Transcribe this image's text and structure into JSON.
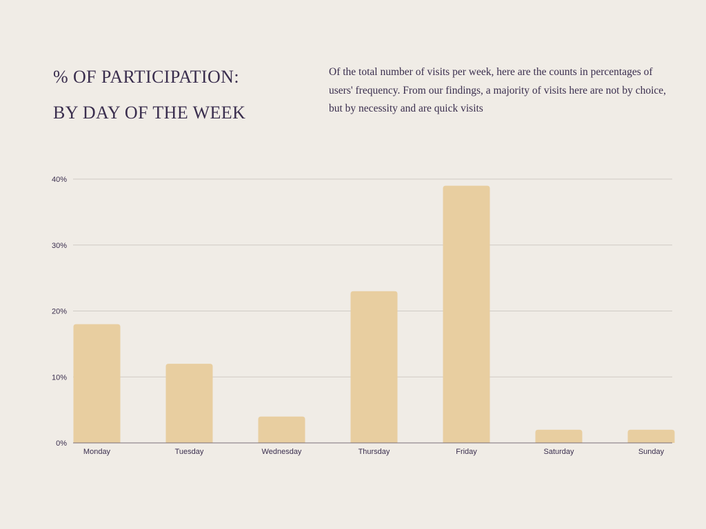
{
  "header": {
    "title_line1": "% OF PARTICIPATION:",
    "title_line2": "BY DAY OF THE WEEK",
    "description": "Of the total number of visits per week, here are the counts in percentages of users' frequency. From our findings, a majority of visits here are not by choice, but by necessity and are quick visits"
  },
  "colors": {
    "bar": "#e8cea0",
    "grid": "#cfcac4",
    "axis": "#7a6e78",
    "text": "#3a2e4e",
    "background": "#f0ece6"
  },
  "chart_data": {
    "type": "bar",
    "categories": [
      "Monday",
      "Tuesday",
      "Wednesday",
      "Thursday",
      "Friday",
      "Saturday",
      "Sunday"
    ],
    "values": [
      18,
      12,
      4,
      23,
      39,
      2,
      2
    ],
    "ylim": [
      0,
      40
    ],
    "yticks": [
      0,
      10,
      20,
      30,
      40
    ],
    "ytick_labels": [
      "0%",
      "10%",
      "20%",
      "30%",
      "40%"
    ],
    "grid": true
  }
}
